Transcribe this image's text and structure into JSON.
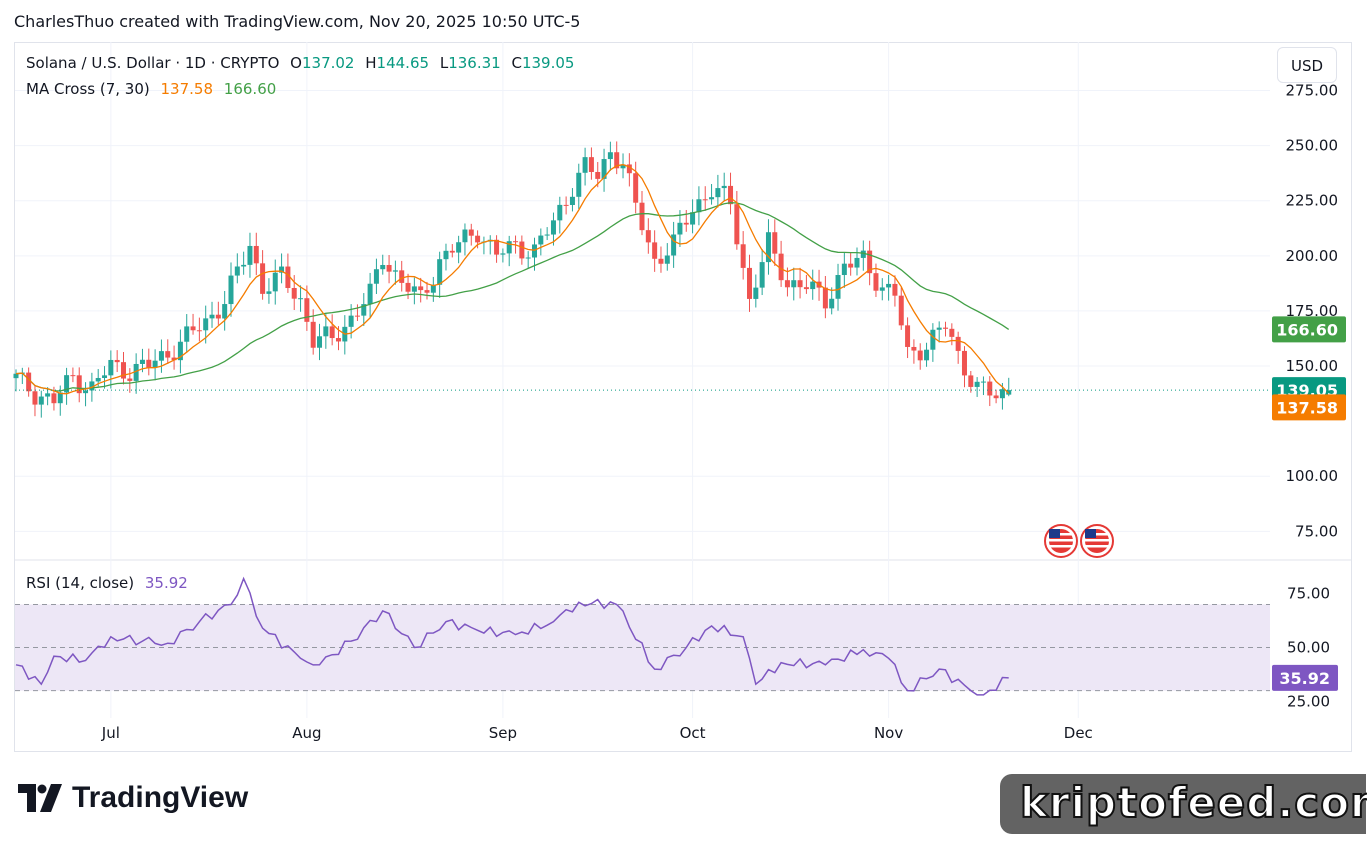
{
  "header": {
    "attribution": "CharlesThuo created with TradingView.com, Nov 20, 2025 10:50 UTC-5"
  },
  "legend": {
    "symbol": "Solana / U.S. Dollar · 1D · CRYPTO",
    "o_label": "O",
    "o_value": "137.02",
    "h_label": "H",
    "h_value": "144.65",
    "l_label": "L",
    "l_value": "136.31",
    "c_label": "C",
    "c_value": "139.05",
    "ma_label": "MA Cross (7, 30)",
    "ma_fast": "137.58",
    "ma_slow": "166.60",
    "rsi_label": "RSI (14, close)",
    "rsi_value": "35.92"
  },
  "currency_button": "USD",
  "price_badges": {
    "ma_slow": "166.60",
    "last": "139.05",
    "ma_fast": "137.58",
    "rsi": "35.92"
  },
  "colors": {
    "up": "#26a69a",
    "down": "#ef5350",
    "ma_fast": "#f57c00",
    "ma_slow": "#43a047",
    "rsi": "#7e57c2",
    "rsi_band": "#ede7f6",
    "ma_slow_badge": "#43a047",
    "last_badge": "#089981",
    "ma_fast_badge": "#f57c00",
    "rsi_badge": "#7e57c2"
  },
  "icons": {
    "event_flags": "us-flag-icon",
    "logo": "tradingview-logo-icon"
  },
  "branding": {
    "tradingview": "TradingView",
    "watermark": "kriptofeed.com"
  },
  "chart_data": [
    {
      "type": "candlestick",
      "title": "Solana / U.S. Dollar · 1D · CRYPTO",
      "x_ticks": [
        "Jul",
        "Aug",
        "Sep",
        "Oct",
        "Nov",
        "Dec"
      ],
      "x_range": [
        "2025-06-16",
        "2025-12-31"
      ],
      "y_ticks": [
        75,
        100,
        150,
        175,
        200,
        225,
        250,
        275
      ],
      "ylim": [
        62,
        297
      ],
      "series": [
        {
          "name": "MA Cross (7, 30) fast",
          "ma_fast_last": 137.58
        },
        {
          "name": "MA Cross (7, 30) slow",
          "ma_slow_last": 166.6
        }
      ],
      "last_close": 139.05,
      "ohlc_last": {
        "open": 137.02,
        "high": 144.65,
        "low": 136.31,
        "close": 139.05
      },
      "closes": [
        {
          "date": "2025-06-16",
          "close": 144
        },
        {
          "date": "2025-06-19",
          "close": 138
        },
        {
          "date": "2025-06-22",
          "close": 134
        },
        {
          "date": "2025-06-25",
          "close": 145
        },
        {
          "date": "2025-06-28",
          "close": 140
        },
        {
          "date": "2025-07-01",
          "close": 150
        },
        {
          "date": "2025-07-04",
          "close": 148
        },
        {
          "date": "2025-07-07",
          "close": 150
        },
        {
          "date": "2025-07-10",
          "close": 156
        },
        {
          "date": "2025-07-13",
          "close": 163
        },
        {
          "date": "2025-07-16",
          "close": 170
        },
        {
          "date": "2025-07-19",
          "close": 180
        },
        {
          "date": "2025-07-22",
          "close": 198
        },
        {
          "date": "2025-07-23",
          "close": 205
        },
        {
          "date": "2025-07-25",
          "close": 186
        },
        {
          "date": "2025-07-28",
          "close": 190
        },
        {
          "date": "2025-07-31",
          "close": 180
        },
        {
          "date": "2025-08-02",
          "close": 162
        },
        {
          "date": "2025-08-05",
          "close": 162
        },
        {
          "date": "2025-08-08",
          "close": 172
        },
        {
          "date": "2025-08-11",
          "close": 182
        },
        {
          "date": "2025-08-13",
          "close": 200
        },
        {
          "date": "2025-08-16",
          "close": 188
        },
        {
          "date": "2025-08-19",
          "close": 180
        },
        {
          "date": "2025-08-22",
          "close": 198
        },
        {
          "date": "2025-08-25",
          "close": 205
        },
        {
          "date": "2025-08-28",
          "close": 212
        },
        {
          "date": "2025-08-31",
          "close": 200
        },
        {
          "date": "2025-09-03",
          "close": 205
        },
        {
          "date": "2025-09-06",
          "close": 202
        },
        {
          "date": "2025-09-09",
          "close": 215
        },
        {
          "date": "2025-09-12",
          "close": 232
        },
        {
          "date": "2025-09-14",
          "close": 240
        },
        {
          "date": "2025-09-16",
          "close": 236
        },
        {
          "date": "2025-09-18",
          "close": 248
        },
        {
          "date": "2025-09-20",
          "close": 242
        },
        {
          "date": "2025-09-22",
          "close": 222
        },
        {
          "date": "2025-09-25",
          "close": 198
        },
        {
          "date": "2025-09-28",
          "close": 205
        },
        {
          "date": "2025-10-01",
          "close": 222
        },
        {
          "date": "2025-10-04",
          "close": 230
        },
        {
          "date": "2025-10-07",
          "close": 224
        },
        {
          "date": "2025-10-10",
          "close": 180
        },
        {
          "date": "2025-10-13",
          "close": 205
        },
        {
          "date": "2025-10-16",
          "close": 188
        },
        {
          "date": "2025-10-19",
          "close": 186
        },
        {
          "date": "2025-10-22",
          "close": 180
        },
        {
          "date": "2025-10-25",
          "close": 195
        },
        {
          "date": "2025-10-28",
          "close": 198
        },
        {
          "date": "2025-10-31",
          "close": 186
        },
        {
          "date": "2025-11-02",
          "close": 182
        },
        {
          "date": "2025-11-04",
          "close": 155
        },
        {
          "date": "2025-11-07",
          "close": 160
        },
        {
          "date": "2025-11-10",
          "close": 168
        },
        {
          "date": "2025-11-12",
          "close": 155
        },
        {
          "date": "2025-11-15",
          "close": 140
        },
        {
          "date": "2025-11-18",
          "close": 136
        },
        {
          "date": "2025-11-20",
          "close": 139.05
        }
      ]
    },
    {
      "type": "line",
      "title": "RSI (14, close)",
      "y_ticks": [
        25,
        50,
        75
      ],
      "ylim": [
        21,
        86
      ],
      "band": [
        30,
        70
      ],
      "last_value": 35.92,
      "values": [
        {
          "date": "2025-06-16",
          "rsi": 42
        },
        {
          "date": "2025-06-20",
          "rsi": 33
        },
        {
          "date": "2025-06-22",
          "rsi": 46
        },
        {
          "date": "2025-06-27",
          "rsi": 44
        },
        {
          "date": "2025-07-01",
          "rsi": 55
        },
        {
          "date": "2025-07-06",
          "rsi": 53
        },
        {
          "date": "2025-07-10",
          "rsi": 52
        },
        {
          "date": "2025-07-15",
          "rsi": 62
        },
        {
          "date": "2025-07-20",
          "rsi": 70
        },
        {
          "date": "2025-07-22",
          "rsi": 82
        },
        {
          "date": "2025-07-25",
          "rsi": 59
        },
        {
          "date": "2025-07-31",
          "rsi": 45
        },
        {
          "date": "2025-08-03",
          "rsi": 42
        },
        {
          "date": "2025-08-08",
          "rsi": 53
        },
        {
          "date": "2025-08-13",
          "rsi": 67
        },
        {
          "date": "2025-08-18",
          "rsi": 50
        },
        {
          "date": "2025-08-23",
          "rsi": 62
        },
        {
          "date": "2025-08-28",
          "rsi": 58
        },
        {
          "date": "2025-09-03",
          "rsi": 56
        },
        {
          "date": "2025-09-09",
          "rsi": 62
        },
        {
          "date": "2025-09-13",
          "rsi": 71
        },
        {
          "date": "2025-09-19",
          "rsi": 70
        },
        {
          "date": "2025-09-25",
          "rsi": 40
        },
        {
          "date": "2025-09-30",
          "rsi": 50
        },
        {
          "date": "2025-10-04",
          "rsi": 60
        },
        {
          "date": "2025-10-09",
          "rsi": 55
        },
        {
          "date": "2025-10-11",
          "rsi": 33
        },
        {
          "date": "2025-10-15",
          "rsi": 43
        },
        {
          "date": "2025-10-22",
          "rsi": 42
        },
        {
          "date": "2025-10-28",
          "rsi": 49
        },
        {
          "date": "2025-11-01",
          "rsi": 45
        },
        {
          "date": "2025-11-04",
          "rsi": 30
        },
        {
          "date": "2025-11-09",
          "rsi": 40
        },
        {
          "date": "2025-11-14",
          "rsi": 30
        },
        {
          "date": "2025-11-16",
          "rsi": 28
        },
        {
          "date": "2025-11-20",
          "rsi": 35.92
        }
      ]
    }
  ]
}
